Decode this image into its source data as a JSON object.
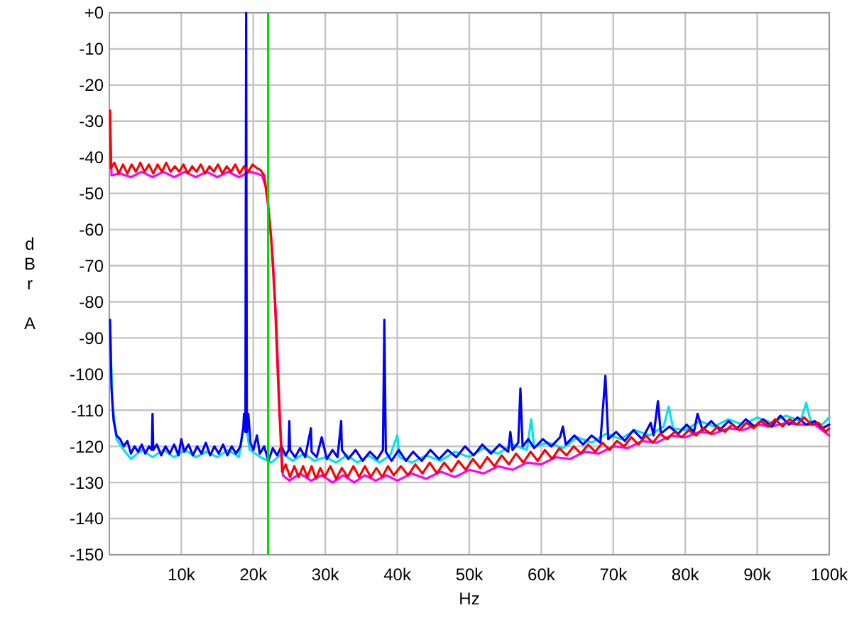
{
  "chart_data": {
    "type": "line",
    "xlabel": "Hz",
    "ylabel": "dBr A",
    "xlim": [
      0,
      100000
    ],
    "ylim": [
      -150,
      0
    ],
    "xticks": [
      {
        "value": 10000,
        "label": "10k"
      },
      {
        "value": 20000,
        "label": "20k"
      },
      {
        "value": 30000,
        "label": "30k"
      },
      {
        "value": 40000,
        "label": "40k"
      },
      {
        "value": 50000,
        "label": "50k"
      },
      {
        "value": 60000,
        "label": "60k"
      },
      {
        "value": 70000,
        "label": "70k"
      },
      {
        "value": 80000,
        "label": "80k"
      },
      {
        "value": 90000,
        "label": "90k"
      },
      {
        "value": 100000,
        "label": "100k"
      }
    ],
    "yticks": [
      {
        "value": 0,
        "label": "+0"
      },
      -10,
      -20,
      -30,
      -40,
      -50,
      -60,
      -70,
      -80,
      -90,
      -100,
      -110,
      -120,
      -130,
      -140,
      -150
    ],
    "grid": true,
    "ref_lines": [
      {
        "axis": "x",
        "value": 22050,
        "color": "#00dd00"
      }
    ],
    "series": [
      {
        "color": "#00e5e5",
        "x": [
          100,
          400,
          1000,
          2000,
          3000,
          4500,
          6000,
          7500,
          9000,
          10500,
          12000,
          13500,
          15000,
          16500,
          18000,
          18800,
          19500,
          21000,
          22500,
          24000,
          25500,
          27000,
          28500,
          30000,
          31500,
          33000,
          34500,
          36000,
          37500,
          39000,
          40000,
          40300,
          42000,
          44000,
          46000,
          48000,
          50000,
          52000,
          54000,
          56000,
          58000,
          58600,
          59000,
          61000,
          63000,
          65000,
          67000,
          69000,
          71000,
          73000,
          75000,
          77000,
          77700,
          78300,
          80000,
          82000,
          84000,
          86000,
          88000,
          90000,
          92000,
          94000,
          96000,
          96800,
          97400,
          99000,
          100000
        ],
        "values": [
          -86,
          -108,
          -118,
          -121,
          -123.5,
          -121,
          -123,
          -121,
          -123,
          -121,
          -123,
          -121.5,
          -123,
          -121,
          -123,
          -112,
          -121,
          -123,
          -124.5,
          -122,
          -124,
          -122,
          -124,
          -123,
          -124.5,
          -122.5,
          -124.5,
          -122.5,
          -124.5,
          -122.5,
          -117,
          -123,
          -124.5,
          -122.5,
          -124,
          -121.5,
          -123,
          -120.5,
          -122,
          -119.5,
          -121,
          -112.5,
          -120,
          -119,
          -120.5,
          -117.5,
          -119,
          -116.5,
          -118,
          -115.5,
          -117,
          -114.5,
          -109,
          -115,
          -115.5,
          -113,
          -114.5,
          -112.5,
          -114,
          -112,
          -113.5,
          -111.5,
          -113,
          -108,
          -113,
          -114,
          -112
        ]
      },
      {
        "color": "#ff00ff",
        "x": [
          100,
          300,
          1500,
          3000,
          4500,
          6000,
          7500,
          9000,
          10500,
          12000,
          13500,
          15000,
          16500,
          18000,
          19500,
          20500,
          21200,
          21700,
          22200,
          22700,
          23200,
          23700,
          24100,
          25000,
          26500,
          28000,
          29500,
          31000,
          32500,
          34000,
          35500,
          37000,
          38500,
          40000,
          42000,
          44000,
          46000,
          48000,
          50000,
          52000,
          54000,
          56000,
          58000,
          60000,
          62000,
          64000,
          66000,
          68000,
          70000,
          72000,
          74000,
          76000,
          78000,
          80000,
          82000,
          84000,
          86000,
          88000,
          90000,
          92000,
          94000,
          96000,
          98000,
          100000
        ],
        "values": [
          -28,
          -45,
          -44.5,
          -45.5,
          -44,
          -45.5,
          -44,
          -45.5,
          -44,
          -45.5,
          -44,
          -45.5,
          -44,
          -45.5,
          -44,
          -44.5,
          -45,
          -48,
          -56,
          -68,
          -86,
          -112,
          -128,
          -129.5,
          -127.5,
          -129.5,
          -128,
          -130,
          -128,
          -130,
          -128,
          -129.5,
          -128,
          -129.5,
          -127.5,
          -129,
          -127,
          -128.5,
          -126.5,
          -127.5,
          -125.5,
          -126.5,
          -124.5,
          -125,
          -123,
          -123.5,
          -121.5,
          -122,
          -120,
          -120.5,
          -118.5,
          -119,
          -117,
          -117.5,
          -116,
          -116.5,
          -115,
          -115.5,
          -114,
          -114.5,
          -113.5,
          -114,
          -114,
          -117
        ]
      },
      {
        "color": "#0000ff",
        "x": [
          100,
          300,
          600,
          1000,
          1500,
          2000,
          2500,
          3000,
          3500,
          4000,
          4500,
          5000,
          5500,
          5900,
          6000,
          6100,
          6600,
          7200,
          7800,
          8400,
          9000,
          9600,
          10000,
          10400,
          11000,
          11600,
          12200,
          12800,
          13400,
          14000,
          14600,
          15200,
          15800,
          16400,
          17000,
          17600,
          18200,
          18600,
          18700,
          18900,
          19000,
          19100,
          19300,
          19600,
          20000,
          20500,
          20900,
          21500,
          22100,
          22700,
          23300,
          23900,
          24500,
          24900,
          25000,
          25100,
          25800,
          26500,
          27200,
          28000,
          28100,
          28800,
          29500,
          30200,
          31000,
          31700,
          32200,
          32300,
          33200,
          34200,
          35200,
          36200,
          37200,
          38000,
          38200,
          38400,
          39200,
          40200,
          41200,
          42200,
          43400,
          44600,
          45800,
          47000,
          48200,
          49400,
          50600,
          51800,
          53000,
          54200,
          55400,
          55700,
          56000,
          56800,
          57100,
          57400,
          58200,
          59000,
          60200,
          61400,
          62600,
          63000,
          63400,
          64600,
          65800,
          67000,
          68200,
          68900,
          69300,
          70400,
          71600,
          72800,
          74000,
          75200,
          75600,
          76200,
          76600,
          77800,
          79000,
          80200,
          81200,
          81700,
          82400,
          83600,
          84800,
          86000,
          87200,
          88400,
          89600,
          90800,
          92000,
          93200,
          94400,
          95600,
          96800,
          98000,
          99000,
          100000
        ],
        "values": [
          -85,
          -104,
          -113,
          -117,
          -118,
          -120,
          -118.5,
          -122,
          -120,
          -121.5,
          -119.5,
          -122,
          -120,
          -121,
          -111,
          -121,
          -119.5,
          -122.5,
          -120,
          -122,
          -119.5,
          -122.5,
          -118,
          -121.5,
          -119.5,
          -122.5,
          -120,
          -122,
          -119,
          -122.5,
          -120,
          -122,
          -119.5,
          -122.5,
          -120,
          -122,
          -120,
          -115,
          -111,
          -116,
          0,
          -116,
          -111,
          -119,
          -121,
          -117,
          -122,
          -120,
          -124,
          -120.5,
          -122.5,
          -120,
          -122.5,
          -121,
          -113,
          -121,
          -123,
          -120.5,
          -123,
          -115,
          -121.5,
          -123,
          -117.5,
          -123.5,
          -121,
          -123,
          -113,
          -121,
          -123.5,
          -121,
          -124,
          -121.5,
          -123.5,
          -121,
          -85,
          -121.5,
          -124,
          -121,
          -124,
          -121.5,
          -124,
          -121,
          -123.5,
          -121,
          -123,
          -120,
          -122.5,
          -119.5,
          -122,
          -119.5,
          -121.5,
          -116,
          -121,
          -119,
          -104,
          -120,
          -118,
          -120.5,
          -118,
          -120,
          -117.5,
          -114.5,
          -119.5,
          -117,
          -119.5,
          -117,
          -119,
          -100.5,
          -118,
          -116,
          -118.5,
          -115.5,
          -118,
          -113.5,
          -117,
          -107.5,
          -116.5,
          -114.5,
          -116.5,
          -114,
          -116,
          -111,
          -115.5,
          -113,
          -115.5,
          -113,
          -115,
          -112.5,
          -114.5,
          -112.5,
          -114.5,
          -111.5,
          -114,
          -112,
          -114,
          -113,
          -115,
          -114
        ]
      },
      {
        "color": "#ff0000",
        "x": [
          100,
          200,
          700,
          1300,
          1900,
          2500,
          3100,
          3700,
          4300,
          4900,
          5500,
          6100,
          6700,
          7300,
          7900,
          8500,
          9100,
          9700,
          10300,
          10900,
          11500,
          12100,
          12700,
          13300,
          13900,
          14500,
          15100,
          15700,
          16300,
          16900,
          17500,
          18100,
          18700,
          19300,
          19900,
          20500,
          21000,
          21500,
          22000,
          22500,
          23000,
          23500,
          24000,
          24500,
          25100,
          25700,
          26300,
          26900,
          27500,
          28100,
          28700,
          29300,
          29900,
          30700,
          31500,
          32300,
          33100,
          33900,
          34700,
          35500,
          36300,
          37100,
          37900,
          38700,
          39500,
          40500,
          41500,
          42500,
          43500,
          44500,
          45500,
          46500,
          47500,
          48500,
          49500,
          50500,
          51500,
          52500,
          53500,
          54500,
          55500,
          56500,
          57500,
          58500,
          59500,
          60500,
          61500,
          62500,
          63500,
          64500,
          65500,
          66500,
          67500,
          68500,
          69500,
          70500,
          71500,
          72500,
          73500,
          74500,
          75500,
          76500,
          77500,
          78500,
          79500,
          80500,
          81500,
          82500,
          83500,
          84500,
          85500,
          86500,
          87500,
          88500,
          89500,
          90500,
          91500,
          92500,
          93500,
          94500,
          95500,
          96500,
          97500,
          98500,
          99500,
          100000
        ],
        "values": [
          -27,
          -43,
          -41.5,
          -44.5,
          -42,
          -44.5,
          -42,
          -44,
          -41.5,
          -44,
          -42,
          -44.5,
          -42,
          -44,
          -41.5,
          -44,
          -42.5,
          -44,
          -42,
          -44.5,
          -42.5,
          -44,
          -42,
          -44.5,
          -42.5,
          -44,
          -42,
          -44.5,
          -42.5,
          -44,
          -42,
          -44.5,
          -42.5,
          -44,
          -42,
          -43,
          -43.5,
          -45,
          -52,
          -63,
          -80,
          -105,
          -127,
          -125,
          -128.5,
          -125.5,
          -128.5,
          -125.5,
          -128.5,
          -125.5,
          -129,
          -126,
          -128.5,
          -125.5,
          -129,
          -126,
          -128.5,
          -125.5,
          -128.5,
          -125.5,
          -128.5,
          -126,
          -128.5,
          -125.5,
          -128,
          -125.5,
          -128,
          -125,
          -127.5,
          -124.5,
          -127.5,
          -124.5,
          -127,
          -124,
          -126.5,
          -123.5,
          -126,
          -123,
          -125.5,
          -122.5,
          -125,
          -122,
          -124.5,
          -121.5,
          -124,
          -121,
          -123.5,
          -120.5,
          -122.5,
          -120,
          -122,
          -119.5,
          -121.5,
          -119,
          -121,
          -118.5,
          -120,
          -117.5,
          -119.5,
          -117,
          -119,
          -116.5,
          -118,
          -116,
          -117.5,
          -115.5,
          -117,
          -115,
          -116.5,
          -114.5,
          -116,
          -114,
          -115.5,
          -113.5,
          -115,
          -113,
          -114.5,
          -112.5,
          -114.5,
          -112.5,
          -114,
          -112,
          -114,
          -113.5,
          -116,
          -115
        ]
      }
    ]
  }
}
